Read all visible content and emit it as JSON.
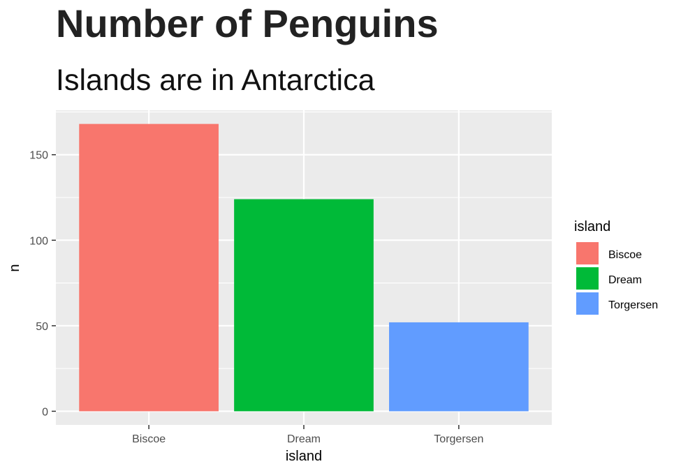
{
  "chart_data": {
    "type": "bar",
    "title": "Number of Penguins",
    "subtitle": "Islands are in Antarctica",
    "xlabel": "island",
    "ylabel": "n",
    "categories": [
      "Biscoe",
      "Dream",
      "Torgersen"
    ],
    "values": [
      168,
      124,
      52
    ],
    "colors": [
      "#F8766D",
      "#00BA38",
      "#619CFF"
    ],
    "ylim": [
      -8,
      176
    ],
    "yticks": [
      0,
      50,
      100,
      150
    ],
    "grid": true,
    "panel_background": "#EBEBEB",
    "legend": {
      "title": "island",
      "position": "right",
      "entries": [
        "Biscoe",
        "Dream",
        "Torgersen"
      ]
    }
  }
}
